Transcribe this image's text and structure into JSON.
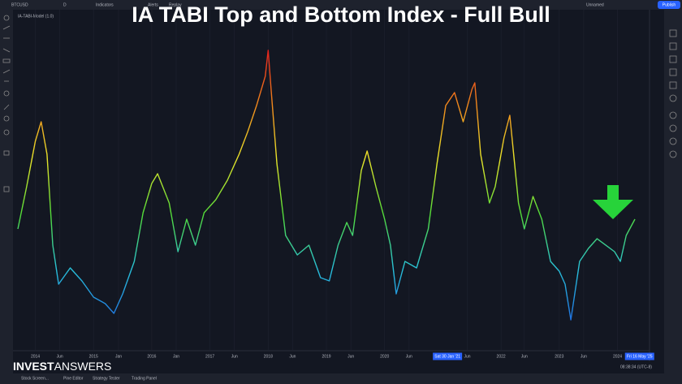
{
  "header": {
    "symbol": "BTCUSD",
    "interval": "D",
    "indicators": "Indicators",
    "alerts": "Alerts",
    "replay": "Replay",
    "layout": "Unnamed",
    "publish": "Publish"
  },
  "overlay_title": "IA TABI Top and Bottom Index - Full Bull",
  "indicator_label": "IA-TABI-Model (1.0)",
  "watermark": {
    "bold": "INVEST",
    "light": "ANSWERS"
  },
  "footer": {
    "tabs": [
      "Stock Screen...",
      "Pine Editor",
      "Strategy Tester",
      "Trading Panel"
    ],
    "clock": "08:38:34 (UTC-8)"
  },
  "chart_data": {
    "type": "line",
    "x": [
      2013.7,
      2013.85,
      2014.0,
      2014.1,
      2014.2,
      2014.3,
      2014.4,
      2014.6,
      2014.8,
      2015.0,
      2015.2,
      2015.35,
      2015.5,
      2015.7,
      2015.85,
      2016.0,
      2016.1,
      2016.3,
      2016.45,
      2016.6,
      2016.75,
      2016.9,
      2017.1,
      2017.3,
      2017.5,
      2017.65,
      2017.8,
      2017.95,
      2018.0,
      2018.05,
      2018.15,
      2018.3,
      2018.5,
      2018.7,
      2018.9,
      2019.05,
      2019.2,
      2019.35,
      2019.45,
      2019.6,
      2019.7,
      2019.85,
      2020.0,
      2020.1,
      2020.2,
      2020.35,
      2020.55,
      2020.75,
      2020.9,
      2021.05,
      2021.2,
      2021.35,
      2021.5,
      2021.55,
      2021.65,
      2021.8,
      2021.9,
      2022.05,
      2022.15,
      2022.3,
      2022.4,
      2022.55,
      2022.7,
      2022.85,
      2023.0,
      2023.1,
      2023.2,
      2023.35,
      2023.5,
      2023.65,
      2023.8,
      2023.95,
      2024.05,
      2024.15,
      2024.3
    ],
    "values": [
      37,
      50,
      64,
      70,
      60,
      32,
      20,
      25,
      21,
      16,
      14,
      11,
      17,
      27,
      42,
      51,
      54,
      45,
      30,
      40,
      32,
      42,
      46,
      52,
      60,
      67,
      75,
      84,
      92,
      80,
      57,
      35,
      29,
      32,
      22,
      21,
      32,
      39,
      35,
      55,
      61,
      50,
      40,
      32,
      17,
      27,
      25,
      37,
      57,
      75,
      79,
      70,
      80,
      82,
      60,
      45,
      50,
      65,
      72,
      45,
      37,
      47,
      40,
      27,
      24,
      20,
      9,
      27,
      31,
      34,
      32,
      30,
      27,
      35,
      40
    ],
    "gradient": [
      "#e41d1d",
      "#f0861c",
      "#e9e52a",
      "#52dc38",
      "#28c0da",
      "#1f6be2"
    ],
    "xlim": [
      2013.7,
      2025.1
    ],
    "ylim": [
      0,
      100
    ],
    "xticks": [
      {
        "value": 2014,
        "label": "2014"
      },
      {
        "value": 2014.42,
        "label": "Jun"
      },
      {
        "value": 2015,
        "label": "2015"
      },
      {
        "value": 2015.43,
        "label": "Jan"
      },
      {
        "value": 2016,
        "label": "2016"
      },
      {
        "value": 2016.42,
        "label": "Jan"
      },
      {
        "value": 2017,
        "label": "2017"
      },
      {
        "value": 2017.42,
        "label": "Jun"
      },
      {
        "value": 2018,
        "label": "2018"
      },
      {
        "value": 2018.42,
        "label": "Jun"
      },
      {
        "value": 2019,
        "label": "2019"
      },
      {
        "value": 2019.42,
        "label": "Jun"
      },
      {
        "value": 2020,
        "label": "2020"
      },
      {
        "value": 2020.42,
        "label": "Jun"
      },
      {
        "value": 2021.42,
        "label": "Jun"
      },
      {
        "value": 2022,
        "label": "2022"
      },
      {
        "value": 2022.4,
        "label": "Jun"
      },
      {
        "value": 2023,
        "label": "2023"
      },
      {
        "value": 2023.42,
        "label": "Jun"
      },
      {
        "value": 2024,
        "label": "2024"
      }
    ],
    "crosshair_labels": [
      {
        "value": 2021.08,
        "label": "Sat 30 Jan '21"
      },
      {
        "value": 2024.38,
        "label": "Fri 16 May '25"
      }
    ],
    "grid": true
  }
}
